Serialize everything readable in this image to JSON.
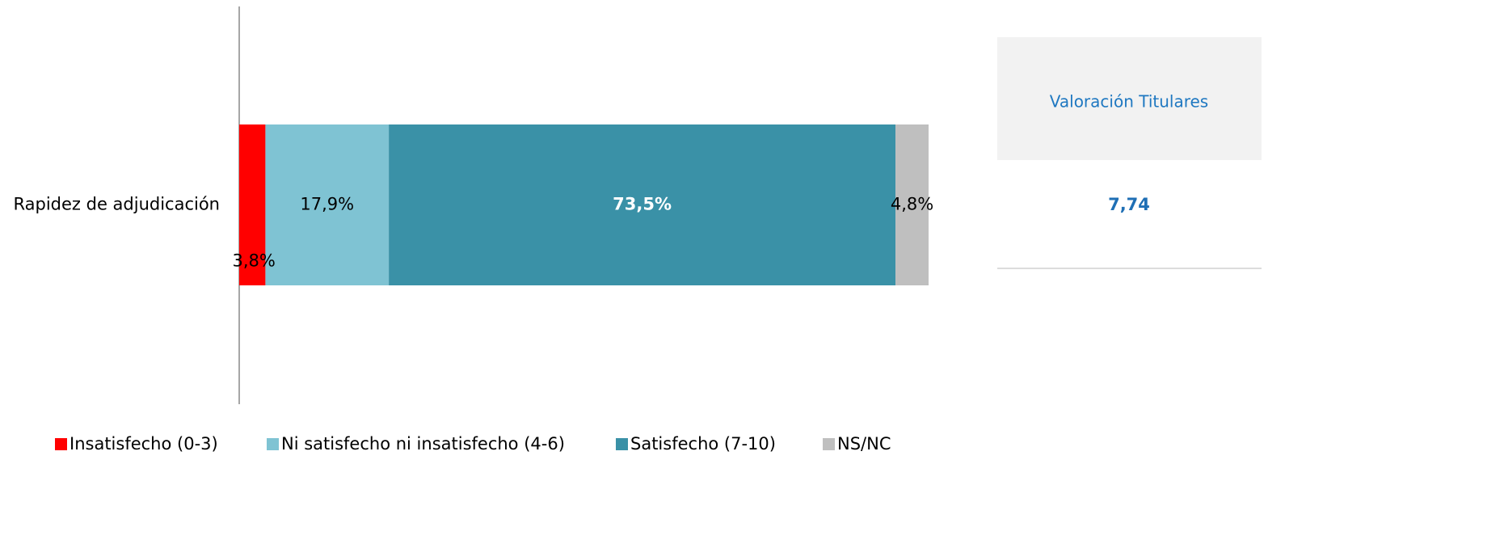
{
  "chart_data": {
    "type": "stacked_barh",
    "categories": [
      "Rapidez de adjudicación"
    ],
    "xlim": [
      0,
      100
    ],
    "series": [
      {
        "name": "Insatisfecho (0-3)",
        "color": "#ff0000",
        "values": [
          3.8
        ],
        "value_labels": [
          "3,8%"
        ]
      },
      {
        "name": "Ni satisfecho ni insatisfecho (4-6)",
        "color": "#7fc3d3",
        "values": [
          17.9
        ],
        "value_labels": [
          "17,9%"
        ]
      },
      {
        "name": "Satisfecho (7-10)",
        "color": "#3a91a7",
        "values": [
          73.5
        ],
        "value_labels": [
          "73,5%"
        ]
      },
      {
        "name": "NS/NC",
        "color": "#bfbfbf",
        "values": [
          4.8
        ],
        "value_labels": [
          "4,8%"
        ]
      }
    ],
    "legend": "bottom",
    "side_table": {
      "header": "Valoración Titulares",
      "values": [
        7.74
      ],
      "value_labels": [
        "7,74"
      ]
    }
  }
}
